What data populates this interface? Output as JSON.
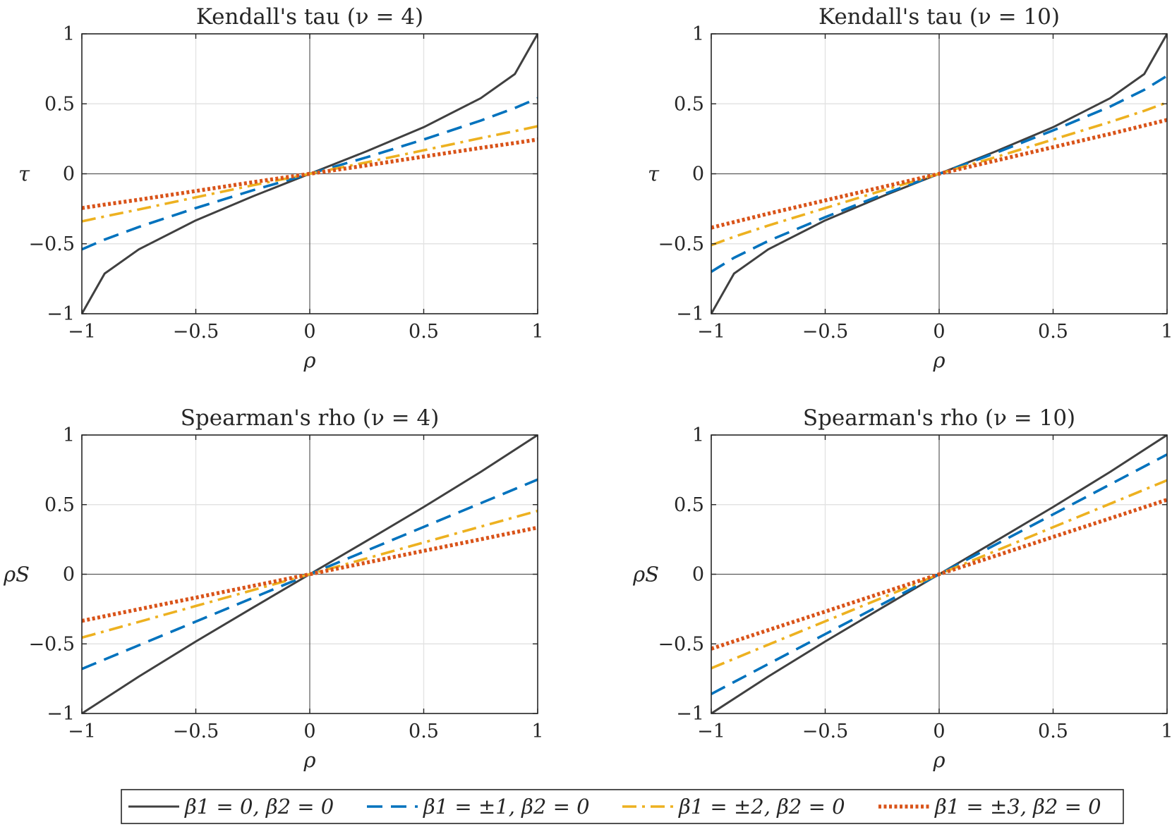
{
  "chart_data": [
    {
      "type": "line",
      "title": "Kendall's tau (ν = 4)",
      "xlabel": "ρ",
      "ylabel": "τ",
      "xlim": [
        -1,
        1
      ],
      "ylim": [
        -1,
        1
      ],
      "xticks": [
        "−1",
        "−0.5",
        "0",
        "0.5",
        "1"
      ],
      "yticks": [
        "−1",
        "−0.5",
        "0",
        "0.5",
        "1"
      ],
      "grid": true,
      "x": [
        -1,
        -0.9,
        -0.75,
        -0.5,
        -0.25,
        0,
        0.25,
        0.5,
        0.75,
        0.9,
        1
      ],
      "series": [
        {
          "name": "β1 = 0, β2 = 0",
          "values": [
            -1,
            -0.713,
            -0.54,
            -0.333,
            -0.161,
            0,
            0.161,
            0.333,
            0.54,
            0.713,
            1
          ]
        },
        {
          "name": "β1 = ±1, β2 = 0",
          "values": [
            -0.54,
            -0.47,
            -0.38,
            -0.245,
            -0.118,
            0,
            0.118,
            0.245,
            0.38,
            0.47,
            0.54
          ]
        },
        {
          "name": "β1 = ±2, β2 = 0",
          "values": [
            -0.34,
            -0.305,
            -0.255,
            -0.168,
            -0.082,
            0,
            0.082,
            0.168,
            0.255,
            0.305,
            0.34
          ]
        },
        {
          "name": "β1 = ±3, β2 = 0",
          "values": [
            -0.245,
            -0.22,
            -0.185,
            -0.123,
            -0.06,
            0,
            0.06,
            0.123,
            0.185,
            0.22,
            0.245
          ]
        }
      ]
    },
    {
      "type": "line",
      "title": "Kendall's tau (ν = 10)",
      "xlabel": "ρ",
      "ylabel": "τ",
      "xlim": [
        -1,
        1
      ],
      "ylim": [
        -1,
        1
      ],
      "xticks": [
        "−1",
        "−0.5",
        "0",
        "0.5",
        "1"
      ],
      "yticks": [
        "−1",
        "−0.5",
        "0",
        "0.5",
        "1"
      ],
      "grid": true,
      "x": [
        -1,
        -0.9,
        -0.75,
        -0.5,
        -0.25,
        0,
        0.25,
        0.5,
        0.75,
        0.9,
        1
      ],
      "series": [
        {
          "name": "β1 = 0, β2 = 0",
          "values": [
            -1,
            -0.713,
            -0.54,
            -0.333,
            -0.161,
            0,
            0.161,
            0.333,
            0.54,
            0.713,
            1
          ]
        },
        {
          "name": "β1 = ±1, β2 = 0",
          "values": [
            -0.7,
            -0.6,
            -0.48,
            -0.31,
            -0.15,
            0,
            0.15,
            0.31,
            0.48,
            0.6,
            0.7
          ]
        },
        {
          "name": "β1 = ±2, β2 = 0",
          "values": [
            -0.51,
            -0.45,
            -0.37,
            -0.245,
            -0.12,
            0,
            0.12,
            0.245,
            0.37,
            0.45,
            0.51
          ]
        },
        {
          "name": "β1 = ±3, β2 = 0",
          "values": [
            -0.385,
            -0.345,
            -0.285,
            -0.19,
            -0.095,
            0,
            0.095,
            0.19,
            0.285,
            0.345,
            0.385
          ]
        }
      ]
    },
    {
      "type": "line",
      "title": "Spearman's rho (ν = 4)",
      "xlabel": "ρ",
      "ylabel": "ρS",
      "xlim": [
        -1,
        1
      ],
      "ylim": [
        -1,
        1
      ],
      "xticks": [
        "−1",
        "−0.5",
        "0",
        "0.5",
        "1"
      ],
      "yticks": [
        "−1",
        "−0.5",
        "0",
        "0.5",
        "1"
      ],
      "grid": true,
      "x": [
        -1,
        -0.75,
        -0.5,
        -0.25,
        0,
        0.25,
        0.5,
        0.75,
        1
      ],
      "series": [
        {
          "name": "β1 = 0, β2 = 0",
          "values": [
            -1,
            -0.735,
            -0.483,
            -0.24,
            0,
            0.24,
            0.483,
            0.735,
            1
          ]
        },
        {
          "name": "β1 = ±1, β2 = 0",
          "values": [
            -0.68,
            -0.51,
            -0.34,
            -0.17,
            0,
            0.17,
            0.34,
            0.51,
            0.68
          ]
        },
        {
          "name": "β1 = ±2, β2 = 0",
          "values": [
            -0.455,
            -0.342,
            -0.228,
            -0.114,
            0,
            0.114,
            0.228,
            0.342,
            0.455
          ]
        },
        {
          "name": "β1 = ±3, β2 = 0",
          "values": [
            -0.335,
            -0.251,
            -0.168,
            -0.084,
            0,
            0.084,
            0.168,
            0.251,
            0.335
          ]
        }
      ]
    },
    {
      "type": "line",
      "title": "Spearman's rho (ν = 10)",
      "xlabel": "ρ",
      "ylabel": "ρS",
      "xlim": [
        -1,
        1
      ],
      "ylim": [
        -1,
        1
      ],
      "xticks": [
        "−1",
        "−0.5",
        "0",
        "0.5",
        "1"
      ],
      "yticks": [
        "−1",
        "−0.5",
        "0",
        "0.5",
        "1"
      ],
      "grid": true,
      "x": [
        -1,
        -0.75,
        -0.5,
        -0.25,
        0,
        0.25,
        0.5,
        0.75,
        1
      ],
      "series": [
        {
          "name": "β1 = 0, β2 = 0",
          "values": [
            -1,
            -0.735,
            -0.483,
            -0.24,
            0,
            0.24,
            0.483,
            0.735,
            1
          ]
        },
        {
          "name": "β1 = ±1, β2 = 0",
          "values": [
            -0.86,
            -0.645,
            -0.43,
            -0.215,
            0,
            0.215,
            0.43,
            0.645,
            0.86
          ]
        },
        {
          "name": "β1 = ±2, β2 = 0",
          "values": [
            -0.675,
            -0.506,
            -0.338,
            -0.169,
            0,
            0.169,
            0.338,
            0.506,
            0.675
          ]
        },
        {
          "name": "β1 = ±3, β2 = 0",
          "values": [
            -0.535,
            -0.401,
            -0.268,
            -0.134,
            0,
            0.134,
            0.268,
            0.401,
            0.535
          ]
        }
      ]
    }
  ],
  "legend": {
    "placement": "bottom",
    "entries": [
      {
        "label": "β1 = 0, β2 = 0",
        "color": "#404040",
        "style": "solid"
      },
      {
        "label": "β1 = ±1, β2 = 0",
        "color": "#0072BD",
        "style": "dashed"
      },
      {
        "label": "β1 = ±2, β2 = 0",
        "color": "#EDB120",
        "style": "dashdot"
      },
      {
        "label": "β1 = ±3, β2 = 0",
        "color": "#D95319",
        "style": "dotted"
      }
    ]
  }
}
